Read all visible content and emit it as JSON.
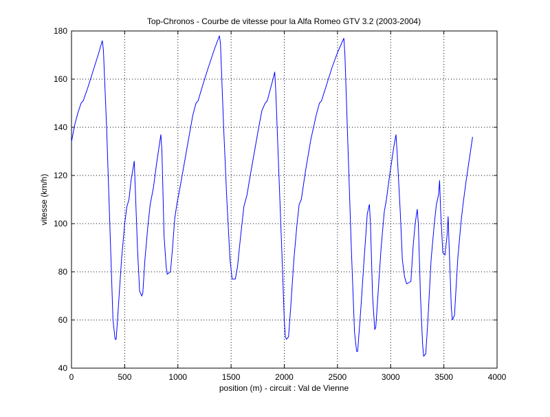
{
  "chart_data": {
    "type": "line",
    "title": "Top-Chronos - Courbe de vitesse pour la Alfa Romeo GTV 3.2 (2003-2004)",
    "xlabel": "position (m) - circuit : Val de Vienne",
    "ylabel": "vitesse (km/h)",
    "x": [
      0,
      30,
      60,
      90,
      110,
      150,
      200,
      250,
      290,
      300,
      330,
      360,
      390,
      410,
      420,
      440,
      470,
      500,
      520,
      540,
      560,
      590,
      600,
      620,
      640,
      660,
      670,
      690,
      720,
      740,
      770,
      800,
      840,
      850,
      870,
      890,
      900,
      930,
      950,
      970,
      990,
      1020,
      1060,
      1100,
      1140,
      1170,
      1190,
      1230,
      1280,
      1340,
      1390,
      1400,
      1430,
      1460,
      1490,
      1510,
      1540,
      1560,
      1590,
      1620,
      1650,
      1680,
      1720,
      1760,
      1790,
      1820,
      1840,
      1870,
      1900,
      1910,
      1920,
      1950,
      1980,
      2000,
      2010,
      2020,
      2040,
      2060,
      2090,
      2120,
      2140,
      2160,
      2200,
      2250,
      2300,
      2330,
      2350,
      2400,
      2450,
      2500,
      2560,
      2570,
      2600,
      2630,
      2660,
      2680,
      2690,
      2720,
      2750,
      2780,
      2800,
      2810,
      2830,
      2850,
      2860,
      2880,
      2910,
      2940,
      2960,
      2990,
      3030,
      3050,
      3060,
      3090,
      3110,
      3130,
      3150,
      3190,
      3210,
      3230,
      3250,
      3260,
      3280,
      3300,
      3310,
      3330,
      3350,
      3380,
      3410,
      3430,
      3450,
      3460,
      3470,
      3490,
      3510,
      3530,
      3540,
      3550,
      3570,
      3580,
      3600,
      3630,
      3660,
      3680,
      3710,
      3740,
      3770
    ],
    "series": [
      {
        "color": "#0000ff",
        "values": [
          134,
          141,
          146,
          150,
          151,
          156,
          163,
          170,
          176,
          172,
          140,
          100,
          60,
          52,
          52,
          65,
          85,
          100,
          107,
          110,
          118,
          126,
          114,
          90,
          72,
          70,
          71,
          85,
          100,
          108,
          115,
          125,
          137,
          130,
          95,
          82,
          79,
          80,
          90,
          102,
          108,
          115,
          125,
          135,
          145,
          150,
          151,
          157,
          164,
          172,
          178,
          175,
          140,
          110,
          85,
          77,
          77,
          82,
          95,
          107,
          112,
          120,
          130,
          140,
          147,
          150,
          151,
          156,
          161,
          163,
          155,
          120,
          85,
          60,
          53,
          52,
          53,
          65,
          85,
          100,
          108,
          110,
          122,
          135,
          145,
          150,
          151,
          158,
          165,
          171,
          177,
          170,
          130,
          90,
          55,
          47,
          47,
          65,
          85,
          104,
          108,
          100,
          70,
          56,
          57,
          70,
          90,
          105,
          110,
          120,
          132,
          137,
          130,
          105,
          85,
          78,
          75,
          76,
          90,
          100,
          106,
          100,
          70,
          50,
          45,
          46,
          60,
          85,
          100,
          108,
          112,
          118,
          105,
          88,
          87,
          95,
          103,
          90,
          65,
          60,
          62,
          85,
          100,
          108,
          118,
          127,
          136
        ]
      }
    ],
    "xlim": [
      0,
      4000
    ],
    "xticks": [
      0,
      500,
      1000,
      1500,
      2000,
      2500,
      3000,
      3500,
      4000
    ],
    "ylim": [
      40,
      180
    ],
    "yticks": [
      40,
      60,
      80,
      100,
      120,
      140,
      160,
      180
    ],
    "grid": true
  }
}
